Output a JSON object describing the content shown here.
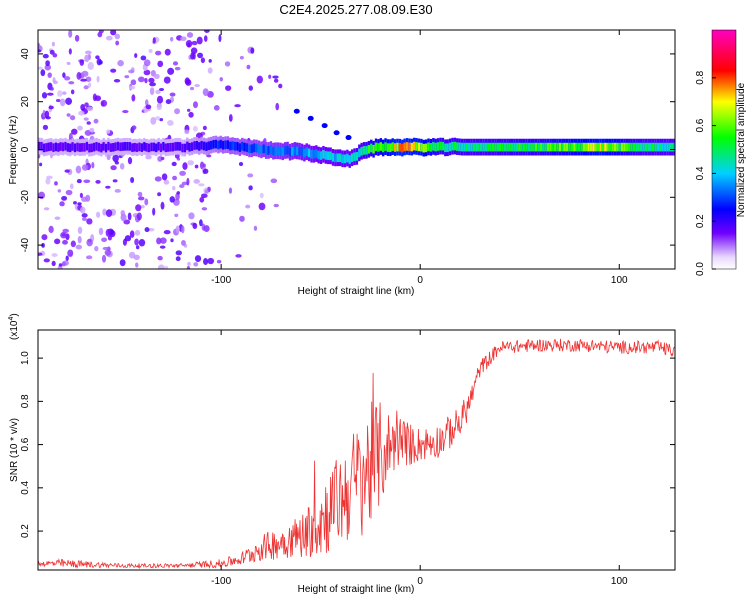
{
  "title": "C2E4.2025.277.08.09.E30",
  "chart_data": [
    {
      "type": "heatmap",
      "title": "C2E4.2025.277.08.09.E30",
      "xlabel": "Height of straight line (km)",
      "ylabel": "Frequency (Hz)",
      "xlim": [
        -192,
        128
      ],
      "ylim": [
        -50,
        50
      ],
      "xticks": [
        -100,
        0,
        100
      ],
      "xtick_labels": [
        "-100",
        "0",
        "100"
      ],
      "yticks": [
        -40,
        -20,
        0,
        20,
        40
      ],
      "ytick_labels": [
        "-40",
        "-20",
        "0",
        "20",
        "40"
      ],
      "colorbar": {
        "label": "Normalized spectral amplitude",
        "range": [
          0,
          1
        ],
        "ticks": [
          0.0,
          0.2,
          0.4,
          0.6,
          0.8
        ],
        "tick_labels": [
          "0.0",
          "0.2",
          "0.4",
          "0.6",
          "0.8"
        ]
      },
      "ridge": {
        "x": [
          -190,
          -160,
          -120,
          -100,
          -80,
          -60,
          -45,
          -35,
          -28,
          -20,
          -10,
          0,
          10,
          30,
          60,
          90,
          110,
          128
        ],
        "center_hz": [
          1,
          1,
          1,
          2,
          0,
          -1,
          -3,
          -4,
          0,
          1,
          1,
          1,
          1,
          1,
          1,
          1,
          1,
          1
        ],
        "amplitude": [
          0.2,
          0.2,
          0.2,
          0.3,
          0.35,
          0.4,
          0.45,
          0.45,
          0.55,
          0.7,
          0.8,
          0.75,
          0.55,
          0.55,
          0.6,
          0.75,
          0.55,
          0.5
        ]
      },
      "branch": {
        "x": [
          -62,
          -55,
          -48,
          -42,
          -36
        ],
        "center_hz": [
          16,
          13,
          10,
          7,
          5
        ]
      }
    },
    {
      "type": "line",
      "xlabel": "Height of straight line (km)",
      "ylabel": "SNR (10 * v/v)",
      "y_multiplier": "(x10",
      "y_multiplier_exp": "4",
      "y_multiplier_close": ")",
      "xlim": [
        -192,
        128
      ],
      "ylim": [
        0.02,
        1.13
      ],
      "xticks": [
        -100,
        0,
        100
      ],
      "xtick_labels": [
        "-100",
        "0",
        "100"
      ],
      "yticks": [
        0.2,
        0.4,
        0.6,
        0.8,
        1.0
      ],
      "ytick_labels": [
        "0.2",
        "0.4",
        "0.6",
        "0.8",
        "1.0"
      ],
      "series": [
        {
          "name": "SNR",
          "color": "#ee3333",
          "x": [
            -192,
            -180,
            -150,
            -120,
            -100,
            -90,
            -80,
            -70,
            -60,
            -50,
            -40,
            -30,
            -25,
            -20,
            -15,
            -10,
            -5,
            0,
            10,
            20,
            25,
            30,
            40,
            60,
            80,
            100,
            120,
            128
          ],
          "mean": [
            0.05,
            0.05,
            0.04,
            0.04,
            0.05,
            0.07,
            0.12,
            0.15,
            0.18,
            0.25,
            0.35,
            0.45,
            0.5,
            0.55,
            0.6,
            0.62,
            0.6,
            0.6,
            0.62,
            0.7,
            0.8,
            0.95,
            1.05,
            1.06,
            1.06,
            1.05,
            1.05,
            1.03
          ],
          "spread": [
            0.01,
            0.02,
            0.01,
            0.01,
            0.02,
            0.03,
            0.06,
            0.08,
            0.1,
            0.18,
            0.22,
            0.28,
            0.3,
            0.25,
            0.15,
            0.12,
            0.1,
            0.08,
            0.08,
            0.08,
            0.06,
            0.04,
            0.03,
            0.03,
            0.03,
            0.03,
            0.03,
            0.03
          ]
        }
      ]
    }
  ]
}
